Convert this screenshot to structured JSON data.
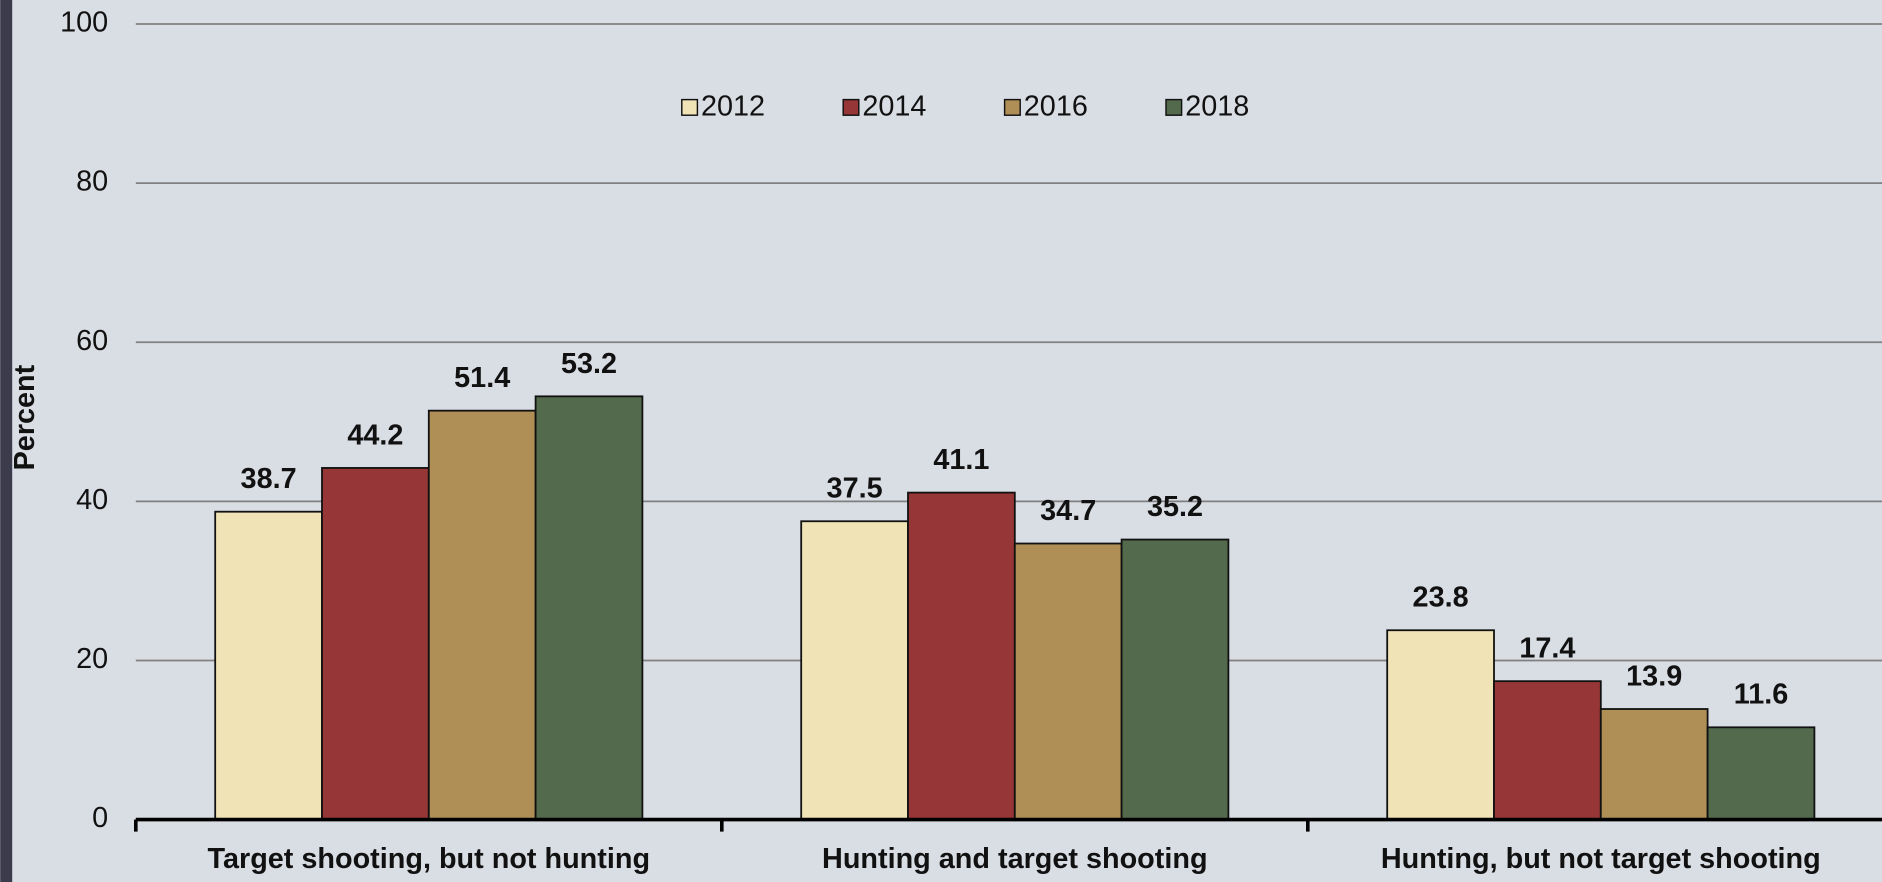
{
  "chart_data": {
    "type": "bar",
    "y_label": "Percent",
    "categories": [
      "Target shooting, but not hunting",
      "Hunting and target shooting",
      "Hunting, but not target shooting"
    ],
    "series": [
      {
        "name": "2012",
        "color": "#f0e3b6",
        "values": [
          38.7,
          37.5,
          23.8
        ]
      },
      {
        "name": "2014",
        "color": "#963636",
        "values": [
          44.2,
          41.1,
          17.4
        ]
      },
      {
        "name": "2016",
        "color": "#b08f57",
        "values": [
          51.4,
          34.7,
          13.9
        ]
      },
      {
        "name": "2018",
        "color": "#536a4c",
        "values": [
          53.2,
          35.2,
          11.6
        ]
      }
    ],
    "ylim": [
      0,
      100
    ],
    "yticks": [
      0,
      20,
      40,
      60,
      80,
      100
    ],
    "grid": true,
    "legend": "top"
  }
}
